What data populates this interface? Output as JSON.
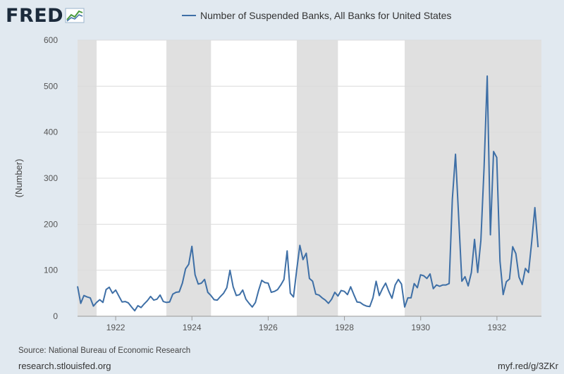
{
  "branding": {
    "logo_text": "FRED",
    "logo_icon": "chart-line-icon",
    "url_left": "research.stlouisfed.org",
    "url_right": "myf.red/g/3ZKr"
  },
  "source": "Source: National Bureau of Economic Research",
  "colors": {
    "line": "#3e6fa6",
    "recession": "#e0e0e0",
    "plot_bg": "#ffffff",
    "page_bg": "#e1e9f0",
    "grid": "#dcdcdc"
  },
  "chart_data": {
    "type": "line",
    "title": "",
    "xlabel": "",
    "ylabel": "(Number)",
    "xlim": [
      1921.0,
      1933.167
    ],
    "ylim": [
      0,
      600
    ],
    "yticks": [
      0,
      100,
      200,
      300,
      400,
      500,
      600
    ],
    "xticks": [
      1922,
      1924,
      1926,
      1928,
      1930,
      1932
    ],
    "grid": "horizontal",
    "legend_position": "top",
    "recession_shading": [
      {
        "start": 1921.0,
        "end": 1921.5
      },
      {
        "start": 1923.33,
        "end": 1924.5
      },
      {
        "start": 1926.75,
        "end": 1927.83
      },
      {
        "start": 1929.58,
        "end": 1933.167
      }
    ],
    "series": [
      {
        "name": "Number of Suspended Banks, All Banks for United States",
        "color": "#3e6fa6",
        "start": 1921.0,
        "step": 0.0833,
        "values": [
          65,
          28,
          45,
          42,
          40,
          22,
          30,
          36,
          30,
          58,
          63,
          50,
          57,
          44,
          31,
          32,
          29,
          20,
          12,
          23,
          19,
          27,
          34,
          43,
          35,
          37,
          46,
          32,
          30,
          31,
          48,
          52,
          53,
          72,
          103,
          113,
          152,
          90,
          70,
          72,
          80,
          52,
          45,
          36,
          35,
          43,
          50,
          62,
          100,
          64,
          45,
          47,
          57,
          37,
          28,
          20,
          30,
          56,
          78,
          73,
          72,
          52,
          54,
          58,
          68,
          80,
          142,
          50,
          42,
          100,
          154,
          123,
          137,
          82,
          76,
          48,
          46,
          40,
          35,
          28,
          37,
          52,
          44,
          56,
          54,
          47,
          64,
          47,
          31,
          30,
          25,
          22,
          21,
          40,
          76,
          45,
          60,
          72,
          54,
          39,
          68,
          80,
          70,
          20,
          40,
          40,
          71,
          62,
          90,
          88,
          82,
          92,
          60,
          68,
          65,
          68,
          68,
          71,
          254,
          352,
          215,
          76,
          86,
          66,
          95,
          167,
          95,
          165,
          322,
          522,
          177,
          358,
          345,
          120,
          47,
          75,
          81,
          151,
          136,
          85,
          69,
          104,
          95,
          162,
          236,
          150
        ]
      }
    ]
  }
}
